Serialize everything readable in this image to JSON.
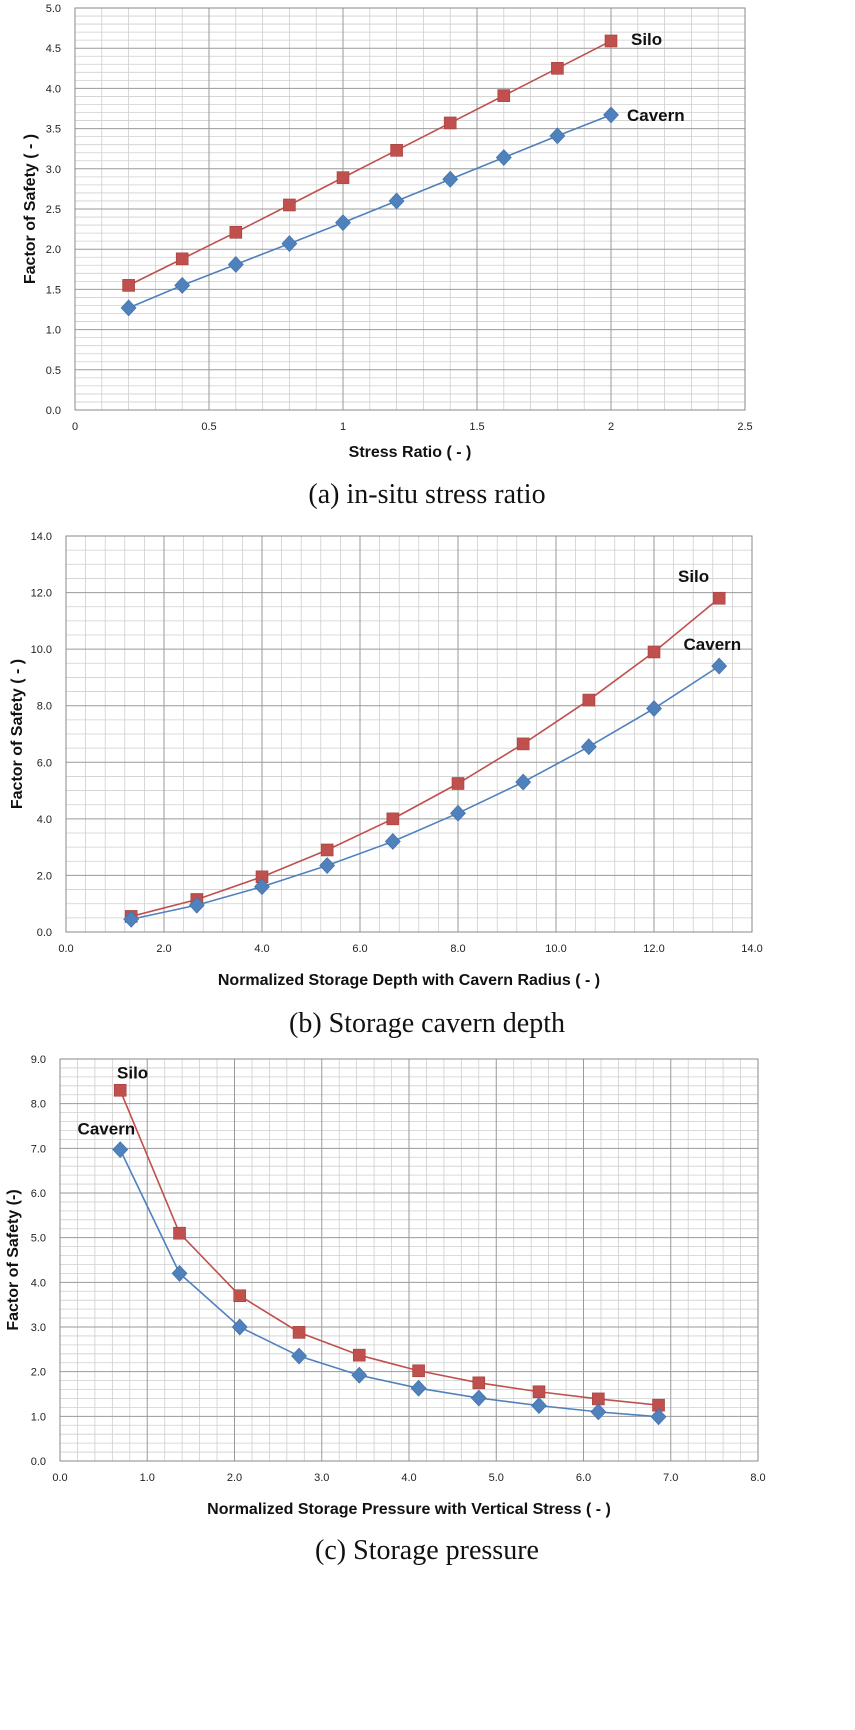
{
  "colors": {
    "silo": "#c0504d",
    "cavern": "#4f81bd"
  },
  "chart_data": [
    {
      "type": "line",
      "caption": "(a) in-situ stress ratio",
      "xlabel": "Stress Ratio ( - )",
      "ylabel": "Factor of Safety ( - )",
      "xlim": [
        0,
        2.5
      ],
      "ylim": [
        0,
        5.0
      ],
      "xticks": [
        "0",
        "0.5",
        "1",
        "1.5",
        "2",
        "2.5"
      ],
      "yticks": [
        "0.0",
        "0.5",
        "1.0",
        "1.5",
        "2.0",
        "2.5",
        "3.0",
        "3.5",
        "4.0",
        "4.5",
        "5.0"
      ],
      "grid": true,
      "series": [
        {
          "name": "Silo",
          "marker": "square",
          "color": "#c0504d",
          "x": [
            0.2,
            0.4,
            0.6,
            0.8,
            1.0,
            1.2,
            1.4,
            1.6,
            1.8,
            2.0
          ],
          "y": [
            1.55,
            1.88,
            2.21,
            2.55,
            2.89,
            3.23,
            3.57,
            3.91,
            4.25,
            4.59
          ]
        },
        {
          "name": "Cavern",
          "marker": "diamond",
          "color": "#4f81bd",
          "x": [
            0.2,
            0.4,
            0.6,
            0.8,
            1.0,
            1.2,
            1.4,
            1.6,
            1.8,
            2.0
          ],
          "y": [
            1.27,
            1.55,
            1.81,
            2.07,
            2.33,
            2.6,
            2.87,
            3.14,
            3.41,
            3.67
          ]
        }
      ]
    },
    {
      "type": "line",
      "caption": "(b) Storage cavern depth",
      "xlabel": "Normalized Storage Depth with Cavern Radius ( - )",
      "ylabel": "Factor of Safety ( - )",
      "xlim": [
        0,
        14
      ],
      "ylim": [
        0,
        14
      ],
      "xticks": [
        "0.0",
        "2.0",
        "4.0",
        "6.0",
        "8.0",
        "10.0",
        "12.0",
        "14.0"
      ],
      "yticks": [
        "0.0",
        "2.0",
        "4.0",
        "6.0",
        "8.0",
        "10.0",
        "12.0",
        "14.0"
      ],
      "grid": true,
      "series": [
        {
          "name": "Silo",
          "marker": "square",
          "color": "#c0504d",
          "x": [
            1.33,
            2.67,
            4.0,
            5.33,
            6.67,
            8.0,
            9.33,
            10.67,
            12.0,
            13.33
          ],
          "y": [
            0.55,
            1.15,
            1.95,
            2.9,
            4.0,
            5.25,
            6.65,
            8.2,
            9.9,
            11.8
          ]
        },
        {
          "name": "Cavern",
          "marker": "diamond",
          "color": "#4f81bd",
          "x": [
            1.33,
            2.67,
            4.0,
            5.33,
            6.67,
            8.0,
            9.33,
            10.67,
            12.0,
            13.33
          ],
          "y": [
            0.45,
            0.95,
            1.6,
            2.35,
            3.2,
            4.2,
            5.3,
            6.55,
            7.9,
            9.4
          ]
        }
      ]
    },
    {
      "type": "line",
      "caption": "(c) Storage pressure",
      "xlabel": "Normalized Storage Pressure with Vertical Stress ( - )",
      "ylabel": "Factor of Safety (-)",
      "xlim": [
        0,
        8
      ],
      "ylim": [
        0,
        9
      ],
      "xticks": [
        "0.0",
        "1.0",
        "2.0",
        "3.0",
        "4.0",
        "5.0",
        "6.0",
        "7.0",
        "8.0"
      ],
      "yticks": [
        "0.0",
        "1.0",
        "2.0",
        "3.0",
        "4.0",
        "5.0",
        "6.0",
        "7.0",
        "8.0",
        "9.0"
      ],
      "grid": true,
      "series": [
        {
          "name": "Silo",
          "marker": "square",
          "color": "#c0504d",
          "x": [
            0.69,
            1.37,
            2.06,
            2.74,
            3.43,
            4.11,
            4.8,
            5.49,
            6.17,
            6.86
          ],
          "y": [
            8.3,
            5.1,
            3.7,
            2.88,
            2.37,
            2.02,
            1.75,
            1.55,
            1.39,
            1.25
          ]
        },
        {
          "name": "Cavern",
          "marker": "diamond",
          "color": "#4f81bd",
          "x": [
            0.69,
            1.37,
            2.06,
            2.74,
            3.43,
            4.11,
            4.8,
            5.49,
            6.17,
            6.86
          ],
          "y": [
            6.97,
            4.2,
            3.0,
            2.35,
            1.92,
            1.63,
            1.41,
            1.24,
            1.1,
            0.99
          ]
        }
      ]
    }
  ]
}
